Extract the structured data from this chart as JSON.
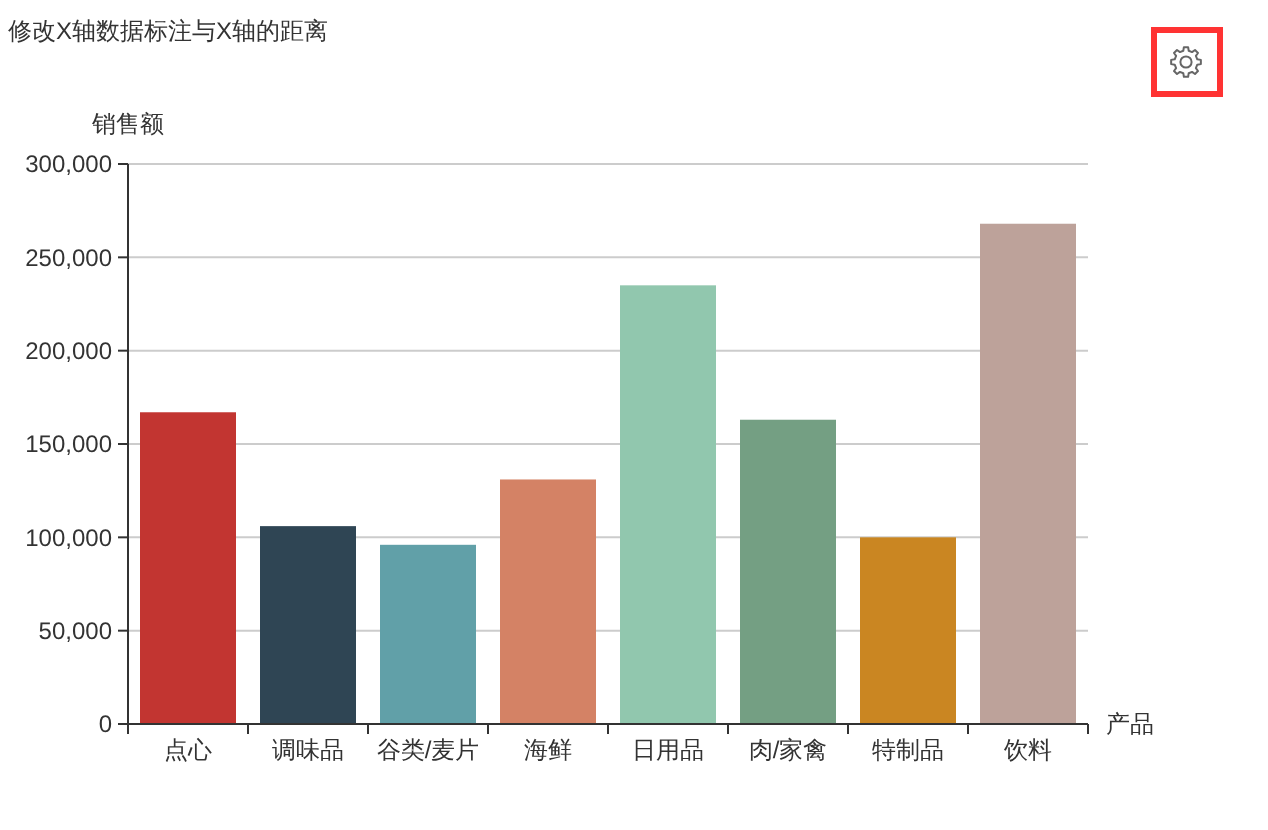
{
  "chart_data": {
    "type": "bar",
    "title": "修改X轴数据标注与X轴的距离",
    "xlabel": "产品",
    "ylabel": "销售额",
    "categories": [
      "点心",
      "调味品",
      "谷类/麦片",
      "海鲜",
      "日用品",
      "肉/家禽",
      "特制品",
      "饮料"
    ],
    "values": [
      167000,
      106000,
      96000,
      131000,
      235000,
      163000,
      100000,
      268000
    ],
    "colors": [
      "#c23531",
      "#2f4554",
      "#61a0a8",
      "#d48265",
      "#91c7ae",
      "#749f83",
      "#ca8622",
      "#bda29a"
    ],
    "ylim": [
      0,
      300000
    ],
    "yticks": [
      {
        "value": 0,
        "label": "0"
      },
      {
        "value": 50000,
        "label": "50,000"
      },
      {
        "value": 100000,
        "label": "100,000"
      },
      {
        "value": 150000,
        "label": "150,000"
      },
      {
        "value": 200000,
        "label": "200,000"
      },
      {
        "value": 250000,
        "label": "250,000"
      },
      {
        "value": 300000,
        "label": "300,000"
      }
    ],
    "grid": "y"
  }
}
